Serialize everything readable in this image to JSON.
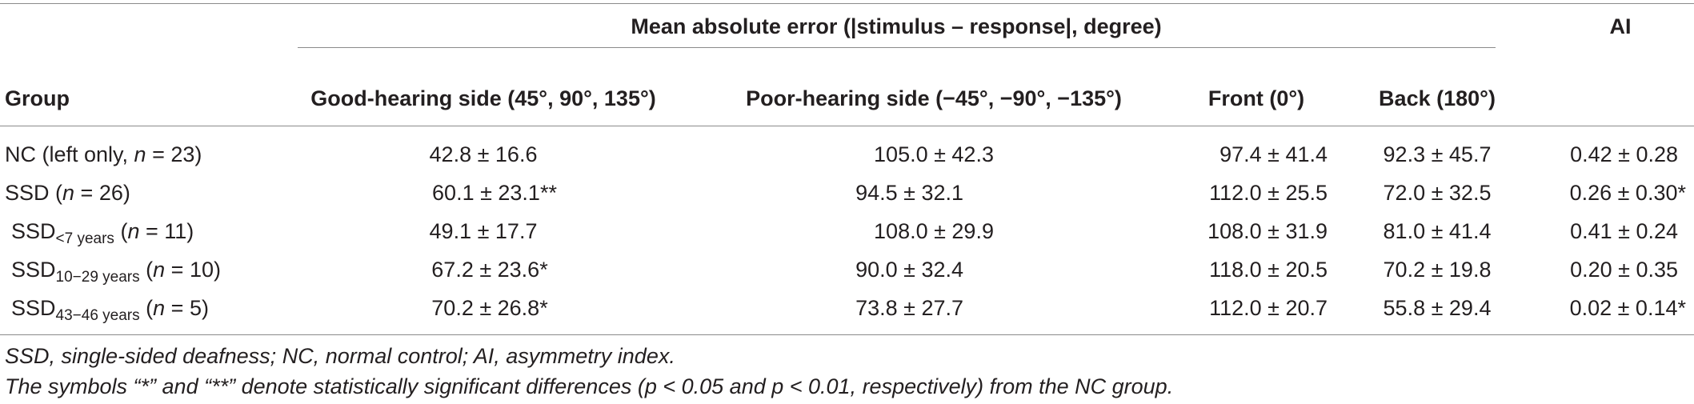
{
  "header": {
    "span_title": "Mean absolute error (|stimulus – response|, degree)",
    "ai": "AI",
    "group": "Group",
    "good": "Good-hearing side (45°, 90°, 135°)",
    "poor": "Poor-hearing side (−45°, −90°, −135°)",
    "front": "Front (0°)",
    "back": "Back (180°)"
  },
  "rows": [
    {
      "g_pre": "NC (left only, ",
      "g_n": "n",
      "g_post": " = 23)",
      "g_sub": "",
      "good": "42.8 ± 16.6",
      "poor": "105.0 ± 42.3",
      "front": "97.4 ± 41.4",
      "back": "92.3 ± 45.7",
      "ai": "0.42 ± 0.28"
    },
    {
      "g_pre": "SSD (",
      "g_n": "n",
      "g_post": " = 26)",
      "g_sub": "",
      "good": "60.1 ± 23.1**",
      "poor": "94.5 ± 32.1",
      "front": "112.0 ± 25.5",
      "back": "72.0 ± 32.5",
      "ai": "0.26 ± 0.30*"
    },
    {
      "g_pre": "SSD",
      "g_sub": "<7 years",
      "g_mid": " (",
      "g_n": "n",
      "g_post": " = 11)",
      "good": "49.1 ± 17.7",
      "poor": "108.0 ± 29.9",
      "front": "108.0 ± 31.9",
      "back": "81.0 ± 41.4",
      "ai": "0.41 ± 0.24"
    },
    {
      "g_pre": "SSD",
      "g_sub": "10−29 years",
      "g_mid": " (",
      "g_n": "n",
      "g_post": " = 10)",
      "good": "67.2 ± 23.6*",
      "poor": "90.0 ± 32.4",
      "front": "118.0 ± 20.5",
      "back": "70.2 ± 19.8",
      "ai": "0.20 ± 0.35"
    },
    {
      "g_pre": "SSD",
      "g_sub": "43−46 years",
      "g_mid": " (",
      "g_n": "n",
      "g_post": " = 5)",
      "good": "70.2 ± 26.8*",
      "poor": "73.8 ± 27.7",
      "front": "112.0 ± 20.7",
      "back": "55.8 ± 29.4",
      "ai": "0.02 ± 0.14*"
    }
  ],
  "footnotes": {
    "abbrev": "SSD, single-sided deafness; NC, normal control; AI, asymmetry index.",
    "symbols": "The symbols “*” and “**” denote statistically significant differences (p < 0.05 and p < 0.01, respectively) from the NC group."
  }
}
